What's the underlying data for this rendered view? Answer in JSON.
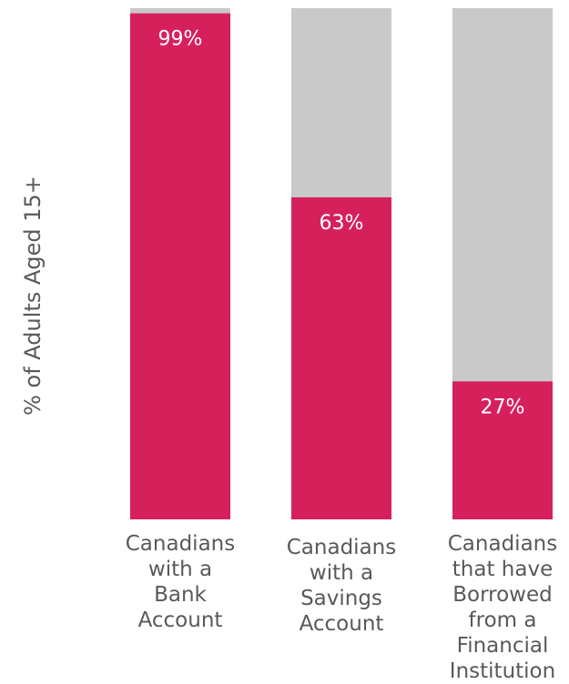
{
  "chart_data": {
    "type": "bar",
    "stacked_to_100": true,
    "ylabel": "% of Adults Aged 15+",
    "ylim": [
      0,
      100
    ],
    "grid": false,
    "categories": [
      [
        "Canadians",
        "with a",
        "Bank",
        "Account"
      ],
      [
        "Canadians",
        "with a",
        "Savings",
        "Account"
      ],
      [
        "Canadians",
        "that have",
        "Borrowed",
        "from a",
        "Financial",
        "Institution"
      ]
    ],
    "values": [
      99,
      63,
      27
    ],
    "data_labels": [
      "99%",
      "63%",
      "27%"
    ],
    "colors": {
      "value": "#d6205c",
      "remainder": "#c9c9c9",
      "label_text": "#595959",
      "data_label": "#ffffff"
    }
  }
}
